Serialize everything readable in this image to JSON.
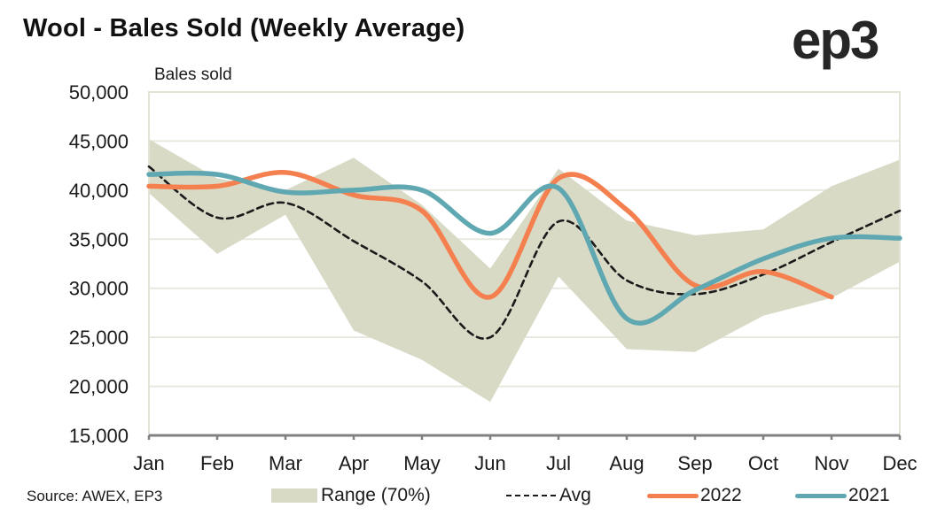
{
  "header": {
    "title": "Wool - Bales Sold (Weekly Average)",
    "logo": "ep3"
  },
  "source": "Source: AWEX, EP3",
  "colors": {
    "range": "#d9dac6",
    "avg": "#1a1a1a",
    "y2022": "#f5804f",
    "y2021": "#5fa8b2",
    "grid": "#e8e8df",
    "axis": "#808080"
  },
  "chart_data": {
    "type": "line",
    "title": "Wool - Bales Sold (Weekly Average)",
    "xlabel": "",
    "ylabel": "Bales sold",
    "ylim": [
      15000,
      50000
    ],
    "y_ticks": [
      15000,
      20000,
      25000,
      30000,
      35000,
      40000,
      45000,
      50000
    ],
    "y_tick_labels": [
      "15,000",
      "20,000",
      "25,000",
      "30,000",
      "35,000",
      "40,000",
      "45,000",
      "50,000"
    ],
    "categories": [
      "Jan",
      "Feb",
      "Mar",
      "Apr",
      "May",
      "Jun",
      "Jul",
      "Aug",
      "Sep",
      "Oct",
      "Nov",
      "Dec"
    ],
    "grid": "horizontal",
    "legend_position": "bottom",
    "range": {
      "name": "Range (70%)",
      "upper": [
        45200,
        41200,
        40000,
        43300,
        38500,
        32000,
        42200,
        36900,
        35400,
        36000,
        40400,
        43100
      ],
      "lower": [
        39700,
        33500,
        37500,
        25700,
        22700,
        18400,
        31200,
        23800,
        23500,
        27200,
        29000,
        32700
      ]
    },
    "series": [
      {
        "name": "Avg",
        "style": "dashed",
        "values": [
          42400,
          37200,
          38700,
          34800,
          30700,
          25000,
          36800,
          30800,
          29400,
          31400,
          34700,
          37900
        ]
      },
      {
        "name": "2022",
        "style": "solid",
        "values": [
          40400,
          40400,
          41800,
          39500,
          37900,
          29100,
          41200,
          38000,
          30300,
          31700,
          29100,
          null
        ]
      },
      {
        "name": "2021",
        "style": "solid",
        "values": [
          41600,
          41600,
          39800,
          40000,
          40000,
          35600,
          40200,
          26900,
          29800,
          33000,
          35100,
          35100
        ]
      }
    ]
  },
  "legend": {
    "range": "Range (70%)",
    "avg": "Avg",
    "y2022": "2022",
    "y2021": "2021"
  }
}
